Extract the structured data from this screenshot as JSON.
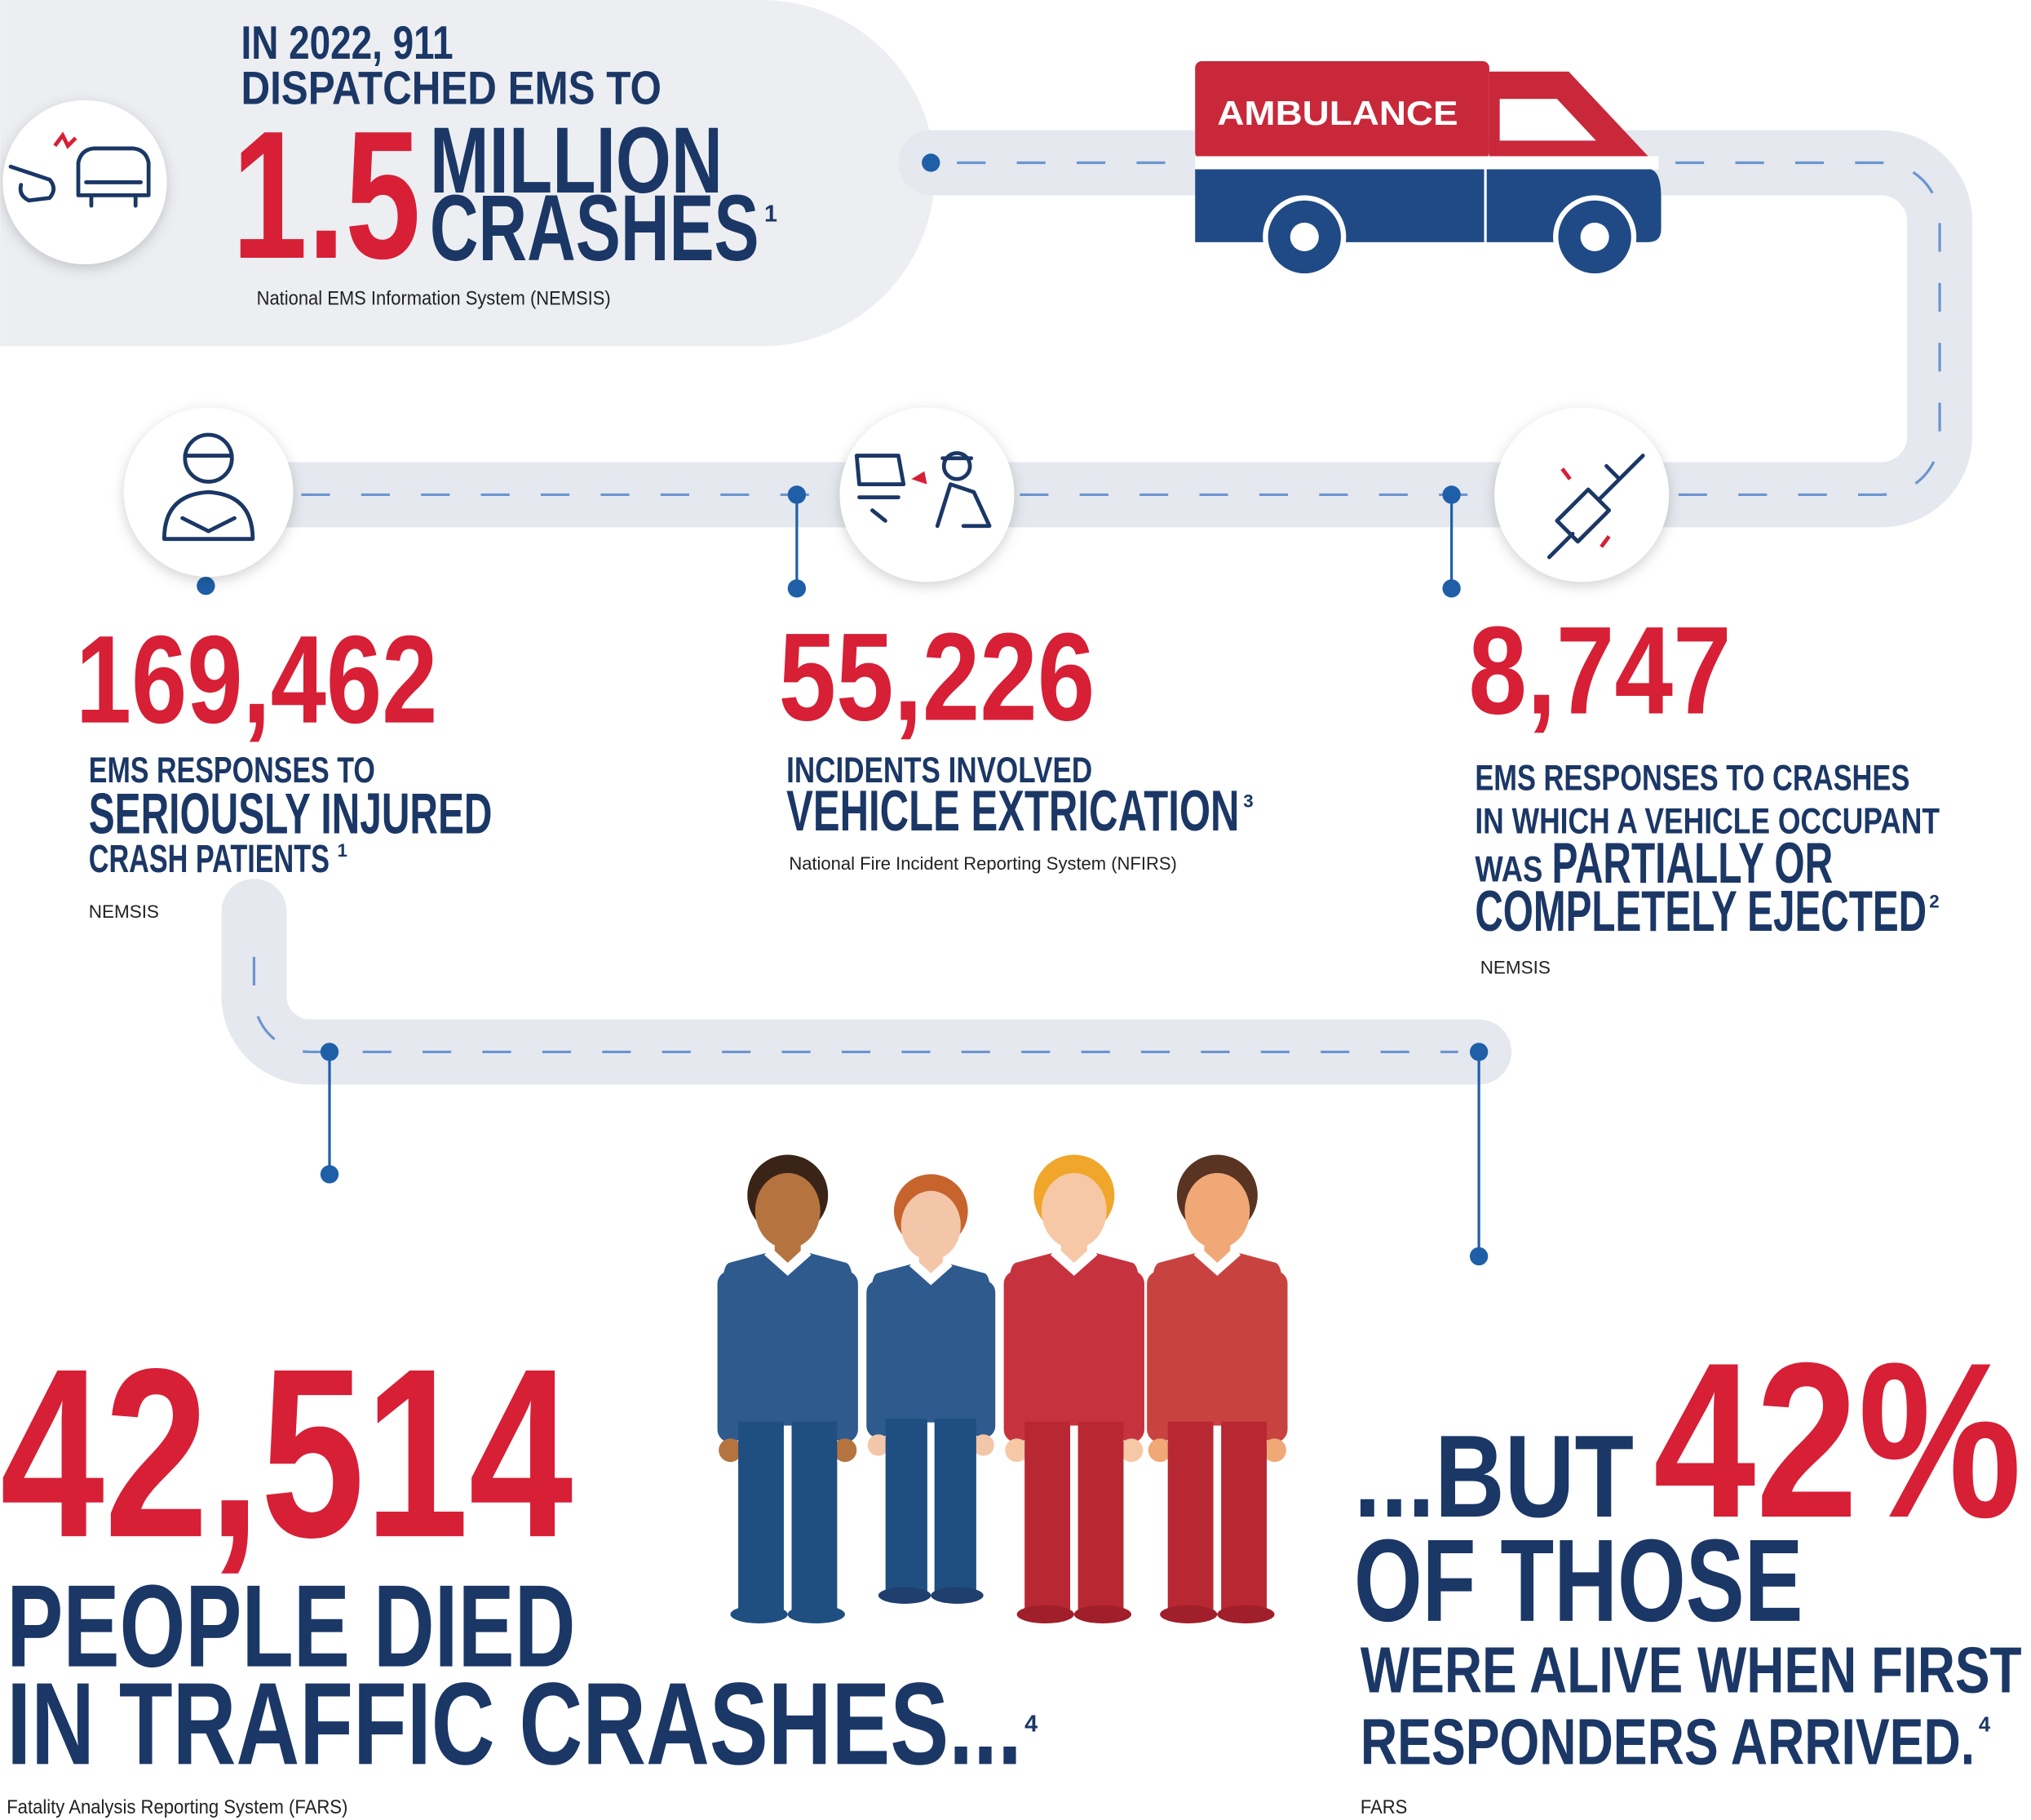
{
  "header": {
    "line1": "IN 2022, 911",
    "line2": "DISPATCHED EMS TO",
    "number": "1.5",
    "unit1": "MILLION",
    "unit2": "CRASHES",
    "note": "1",
    "source": "National EMS Information System (NEMSIS)"
  },
  "ambulance_label": "AMBULANCE",
  "stats": [
    {
      "number": "169,462",
      "lines": [
        "EMS RESPONSES TO",
        "SERIOUSLY INJURED",
        "CRASH PATIENTS"
      ],
      "note": "1",
      "source": "NEMSIS"
    },
    {
      "number": "55,226",
      "lines": [
        "INCIDENTS INVOLVED",
        "VEHICLE EXTRICATION"
      ],
      "note": "3",
      "source": "National Fire Incident Reporting System (NFIRS)"
    },
    {
      "number": "8,747",
      "lines": [
        "EMS RESPONSES TO CRASHES",
        "IN WHICH A VEHICLE OCCUPANT",
        "WAS",
        "PARTIALLY OR",
        "COMPLETELY EJECTED"
      ],
      "note": "2",
      "source": "NEMSIS"
    }
  ],
  "deaths": {
    "number": "42,514",
    "lines": [
      "PEOPLE DIED",
      "IN TRAFFIC CRASHES..."
    ],
    "note": "4",
    "source": "Fatality Analysis Reporting System (FARS)"
  },
  "alive": {
    "prefix": "...BUT",
    "number": "42%",
    "lines": [
      "OF THOSE",
      "WERE ALIVE WHEN FIRST",
      "RESPONDERS ARRIVED."
    ],
    "note": "4",
    "source": "FARS"
  }
}
